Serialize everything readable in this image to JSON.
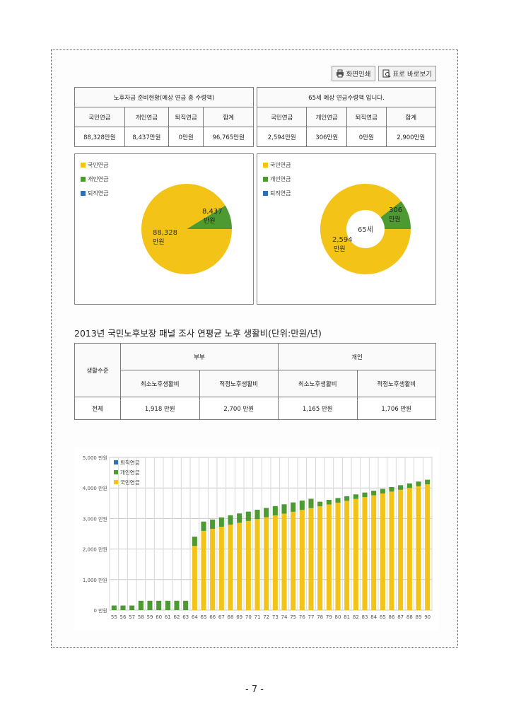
{
  "toolbar": {
    "print_label": "화면인쇄",
    "table_view_label": "표로 바로보기"
  },
  "table1": {
    "title": "노후자금 준비현황(예상 연금 총 수령액)",
    "headers": [
      "국민연금",
      "개인연금",
      "퇴직연금",
      "합계"
    ],
    "values": [
      "88,328만원",
      "8,437만원",
      "0만원",
      "96,765만원"
    ]
  },
  "table2": {
    "title": "65세 예상 연금수령액 입니다.",
    "headers": [
      "국민연금",
      "개인연금",
      "퇴직연금",
      "합계"
    ],
    "values": [
      "2,594만원",
      "306만원",
      "0만원",
      "2,900만원"
    ]
  },
  "pie1": {
    "legend": [
      "국민연금",
      "개인연금",
      "퇴직연금"
    ],
    "slices": [
      88328,
      8437,
      0
    ],
    "label_national": "88,328",
    "label_national_unit": "만원",
    "label_personal": "8,437",
    "label_personal_unit": "만원"
  },
  "pie2": {
    "legend": [
      "국민연금",
      "개인연금",
      "퇴직연금"
    ],
    "slices": [
      2594,
      306,
      0
    ],
    "center_label": "65세",
    "label_national": "2,594",
    "label_national_unit": "만원",
    "label_personal": "306",
    "label_personal_unit": "만원"
  },
  "colors": {
    "national": "#f3c417",
    "personal": "#4d9a32",
    "retirement": "#2f6fb5"
  },
  "section": {
    "title": "2013년 국민노후보장 패널 조사 연평균 노후 생활비(단위:만원/년)"
  },
  "living_table": {
    "row_header": "생활수준",
    "group_couple": "부부",
    "group_individual": "개인",
    "sub_headers": [
      "최소노후생활비",
      "적정노후생활비",
      "최소노후생활비",
      "적정노후생활비"
    ],
    "row_label": "전체",
    "values": [
      "1,918 만원",
      "2,700 만원",
      "1,165 만원",
      "1,706 만원"
    ]
  },
  "chart_data": {
    "type": "bar",
    "stacked": true,
    "ylim": [
      0,
      5000
    ],
    "y_ticks": [
      "0 만원",
      "1,000 만원",
      "2,000 만원",
      "3,000 만원",
      "4,000 만원",
      "5,000 만원"
    ],
    "categories": [
      "55",
      "56",
      "57",
      "58",
      "59",
      "60",
      "61",
      "62",
      "63",
      "64",
      "65",
      "66",
      "67",
      "68",
      "69",
      "70",
      "71",
      "72",
      "73",
      "74",
      "75",
      "76",
      "77",
      "78",
      "79",
      "80",
      "81",
      "82",
      "83",
      "84",
      "85",
      "86",
      "87",
      "88",
      "89",
      "90"
    ],
    "legend": [
      "퇴직연금",
      "개인연금",
      "국민연금"
    ],
    "series": [
      {
        "name": "국민연금",
        "values": [
          0,
          0,
          0,
          0,
          0,
          0,
          0,
          0,
          0,
          2100,
          2594,
          2660,
          2730,
          2800,
          2860,
          2920,
          2980,
          3040,
          3100,
          3160,
          3220,
          3280,
          3340,
          3400,
          3460,
          3520,
          3580,
          3640,
          3700,
          3760,
          3820,
          3880,
          3940,
          4000,
          4060,
          4120
        ]
      },
      {
        "name": "개인연금",
        "values": [
          150,
          150,
          150,
          306,
          306,
          306,
          306,
          306,
          306,
          306,
          306,
          306,
          306,
          306,
          306,
          306,
          306,
          306,
          306,
          306,
          306,
          306,
          306,
          150,
          150,
          150,
          150,
          150,
          150,
          150,
          150,
          150,
          150,
          150,
          150,
          150
        ]
      },
      {
        "name": "퇴직연금",
        "values": [
          0,
          0,
          0,
          0,
          0,
          0,
          0,
          0,
          0,
          0,
          0,
          0,
          0,
          0,
          0,
          0,
          0,
          0,
          0,
          0,
          0,
          0,
          0,
          0,
          0,
          0,
          0,
          0,
          0,
          0,
          0,
          0,
          0,
          0,
          0,
          0
        ]
      }
    ]
  },
  "page": {
    "number": "- 7 -"
  }
}
